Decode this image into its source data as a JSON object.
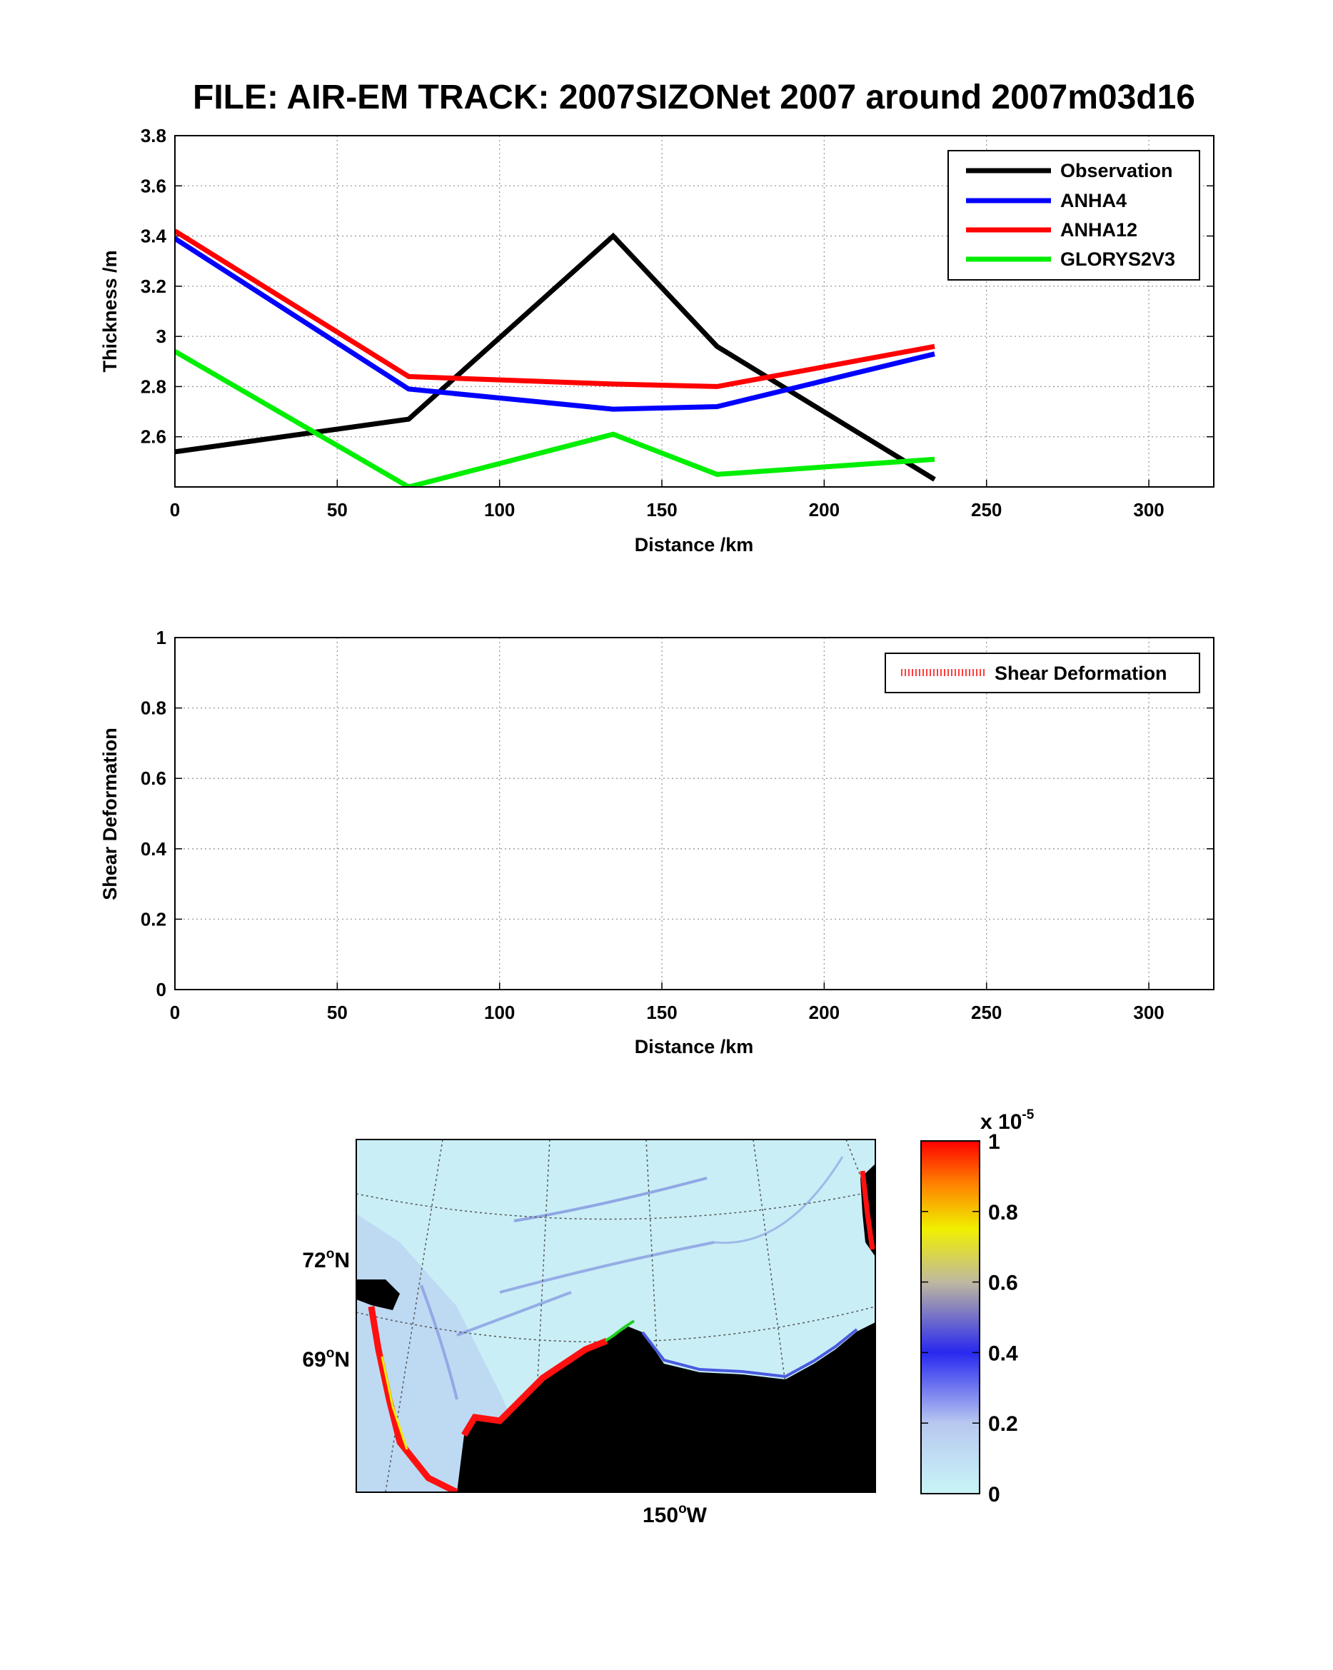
{
  "figure": {
    "title": "FILE: AIR-EM TRACK: 2007SIZONet 2007 around 2007m03d16"
  },
  "chart_data": [
    {
      "type": "line",
      "xlabel": "Distance /km",
      "ylabel": "Thickness /m",
      "xlim": [
        0,
        320
      ],
      "ylim": [
        2.4,
        3.8
      ],
      "xticks": [
        0,
        50,
        100,
        150,
        200,
        250,
        300
      ],
      "yticks": [
        2.6,
        2.8,
        3.0,
        3.2,
        3.4,
        3.6,
        3.8
      ],
      "ytick_labels": [
        "2.6",
        "2.8",
        "3",
        "3.2",
        "3.4",
        "3.6",
        "3.8"
      ],
      "grid": true,
      "legend_position": "top-right",
      "series": [
        {
          "name": "Observation",
          "color": "#000000",
          "x": [
            0,
            72,
            135,
            167,
            234
          ],
          "y": [
            2.54,
            2.67,
            3.4,
            2.96,
            2.43
          ]
        },
        {
          "name": "ANHA4",
          "color": "#0000ff",
          "x": [
            0,
            72,
            135,
            167,
            234
          ],
          "y": [
            3.39,
            2.79,
            2.71,
            2.72,
            2.93
          ]
        },
        {
          "name": "ANHA12",
          "color": "#ff0000",
          "x": [
            0,
            72,
            135,
            167,
            234
          ],
          "y": [
            3.42,
            2.84,
            2.81,
            2.8,
            2.96
          ]
        },
        {
          "name": "GLORYS2V3",
          "color": "#00ee00",
          "x": [
            0,
            72,
            135,
            167,
            234
          ],
          "y": [
            2.94,
            2.4,
            2.61,
            2.45,
            2.51
          ]
        }
      ]
    },
    {
      "type": "line",
      "xlabel": "Distance /km",
      "ylabel": "Shear Deformation",
      "xlim": [
        0,
        320
      ],
      "ylim": [
        0,
        1
      ],
      "xticks": [
        0,
        50,
        100,
        150,
        200,
        250,
        300
      ],
      "yticks": [
        0,
        0.2,
        0.4,
        0.6,
        0.8,
        1
      ],
      "ytick_labels": [
        "0",
        "0.2",
        "0.4",
        "0.6",
        "0.8",
        "1"
      ],
      "grid": true,
      "legend_position": "top-right",
      "series": [
        {
          "name": "Shear Deformation",
          "color": "#ff0000",
          "x": [],
          "y": []
        }
      ]
    },
    {
      "type": "heatmap",
      "lat_labels": [
        "72",
        "69"
      ],
      "lat_suffix": "N",
      "lon_labels": [
        "150"
      ],
      "lon_suffix": "W",
      "degree_symbol": "o",
      "colorbar": {
        "ticks": [
          0,
          0.2,
          0.4,
          0.6,
          0.8,
          1
        ],
        "tick_labels": [
          "0",
          "0.2",
          "0.4",
          "0.6",
          "0.8",
          "1"
        ],
        "scale_prefix": "x 10",
        "scale_exponent": "-5",
        "colors": [
          "#c8f5f7",
          "#b8c8f0",
          "#2828f0",
          "#bfb8a0",
          "#f0f000",
          "#ff8000",
          "#ff0000"
        ]
      }
    }
  ]
}
